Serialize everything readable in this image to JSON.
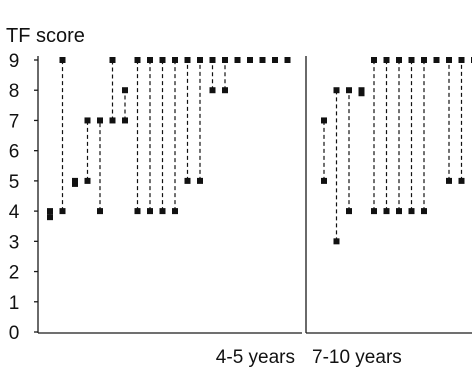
{
  "chart_data": {
    "type": "scatter",
    "title": "TF score",
    "ylabel": "",
    "ylim": [
      0,
      9
    ],
    "yticks": [
      "0",
      "1",
      "2",
      "3",
      "4",
      "5",
      "6",
      "7",
      "8",
      "9"
    ],
    "grid": false,
    "panels": [
      {
        "label": "4-5 years",
        "pairs": [
          [
            3.8,
            4
          ],
          [
            4,
            9
          ],
          [
            4.9,
            5
          ],
          [
            5,
            7
          ],
          [
            4,
            7
          ],
          [
            7,
            9
          ],
          [
            7,
            8
          ],
          [
            4,
            9
          ],
          [
            4,
            9
          ],
          [
            4,
            9
          ],
          [
            4,
            9
          ],
          [
            5,
            9
          ],
          [
            5,
            9
          ],
          [
            8,
            9
          ],
          [
            8,
            9
          ],
          [
            9,
            9
          ],
          [
            9,
            9
          ],
          [
            9,
            9
          ],
          [
            9,
            9
          ],
          [
            9,
            9
          ]
        ]
      },
      {
        "label": "7-10 years",
        "pairs": [
          [
            5,
            7
          ],
          [
            3,
            8
          ],
          [
            4,
            8
          ],
          [
            7.9,
            8
          ],
          [
            4,
            9
          ],
          [
            4,
            9
          ],
          [
            4,
            9
          ],
          [
            4,
            9
          ],
          [
            4,
            9
          ],
          [
            9,
            9
          ],
          [
            5,
            9
          ],
          [
            5,
            9
          ],
          [
            9,
            9
          ]
        ]
      }
    ]
  }
}
